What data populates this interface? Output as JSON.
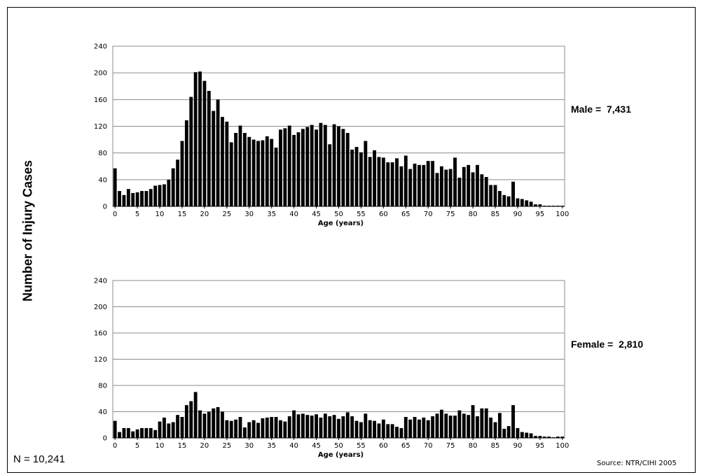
{
  "y_axis_label": "Number of Injury Cases",
  "n_total": "N =  10,241",
  "source": "Source: NTR/CIHI 2005",
  "chart_data": [
    {
      "type": "bar",
      "xlabel": "Age (years)",
      "total_label": "Male =  7,431",
      "ylim": [
        0,
        240
      ],
      "yticks": [
        0,
        40,
        80,
        120,
        160,
        200,
        240
      ],
      "xticks": [
        0,
        5,
        10,
        15,
        20,
        25,
        30,
        35,
        40,
        45,
        50,
        55,
        60,
        65,
        70,
        75,
        80,
        85,
        90,
        95,
        100
      ],
      "xlim": [
        0,
        100
      ],
      "grid": true,
      "categories": [
        0,
        1,
        2,
        3,
        4,
        5,
        6,
        7,
        8,
        9,
        10,
        11,
        12,
        13,
        14,
        15,
        16,
        17,
        18,
        19,
        20,
        21,
        22,
        23,
        24,
        25,
        26,
        27,
        28,
        29,
        30,
        31,
        32,
        33,
        34,
        35,
        36,
        37,
        38,
        39,
        40,
        41,
        42,
        43,
        44,
        45,
        46,
        47,
        48,
        49,
        50,
        51,
        52,
        53,
        54,
        55,
        56,
        57,
        58,
        59,
        60,
        61,
        62,
        63,
        64,
        65,
        66,
        67,
        68,
        69,
        70,
        71,
        72,
        73,
        74,
        75,
        76,
        77,
        78,
        79,
        80,
        81,
        82,
        83,
        84,
        85,
        86,
        87,
        88,
        89,
        90,
        91,
        92,
        93,
        94,
        95,
        96,
        97,
        98,
        99,
        100
      ],
      "values": [
        57,
        23,
        17,
        26,
        20,
        21,
        23,
        23,
        26,
        31,
        32,
        33,
        40,
        57,
        70,
        98,
        129,
        164,
        201,
        202,
        188,
        173,
        143,
        160,
        134,
        127,
        96,
        110,
        121,
        110,
        104,
        100,
        98,
        99,
        105,
        101,
        88,
        115,
        117,
        121,
        107,
        111,
        116,
        119,
        122,
        115,
        125,
        122,
        93,
        123,
        120,
        116,
        110,
        85,
        89,
        81,
        98,
        74,
        84,
        74,
        73,
        66,
        66,
        72,
        60,
        76,
        56,
        64,
        62,
        62,
        68,
        68,
        50,
        60,
        55,
        56,
        73,
        43,
        59,
        62,
        51,
        62,
        48,
        44,
        32,
        32,
        23,
        17,
        15,
        37,
        12,
        11,
        9,
        7,
        3,
        3,
        1,
        1,
        1,
        1,
        1
      ]
    },
    {
      "type": "bar",
      "xlabel": "Age (years)",
      "total_label": "Female =  2,810",
      "ylim": [
        0,
        240
      ],
      "yticks": [
        0,
        40,
        80,
        120,
        160,
        200,
        240
      ],
      "xticks": [
        0,
        5,
        10,
        15,
        20,
        25,
        30,
        35,
        40,
        45,
        50,
        55,
        60,
        65,
        70,
        75,
        80,
        85,
        90,
        95,
        100
      ],
      "xlim": [
        0,
        100
      ],
      "grid": true,
      "categories": [
        0,
        1,
        2,
        3,
        4,
        5,
        6,
        7,
        8,
        9,
        10,
        11,
        12,
        13,
        14,
        15,
        16,
        17,
        18,
        19,
        20,
        21,
        22,
        23,
        24,
        25,
        26,
        27,
        28,
        29,
        30,
        31,
        32,
        33,
        34,
        35,
        36,
        37,
        38,
        39,
        40,
        41,
        42,
        43,
        44,
        45,
        46,
        47,
        48,
        49,
        50,
        51,
        52,
        53,
        54,
        55,
        56,
        57,
        58,
        59,
        60,
        61,
        62,
        63,
        64,
        65,
        66,
        67,
        68,
        69,
        70,
        71,
        72,
        73,
        74,
        75,
        76,
        77,
        78,
        79,
        80,
        81,
        82,
        83,
        84,
        85,
        86,
        87,
        88,
        89,
        90,
        91,
        92,
        93,
        94,
        95,
        96,
        97,
        98,
        99,
        100
      ],
      "values": [
        26,
        9,
        15,
        15,
        10,
        13,
        15,
        15,
        15,
        12,
        25,
        31,
        22,
        24,
        35,
        32,
        50,
        56,
        70,
        42,
        37,
        40,
        45,
        47,
        40,
        27,
        26,
        28,
        32,
        16,
        24,
        27,
        23,
        30,
        31,
        32,
        32,
        27,
        25,
        33,
        42,
        36,
        37,
        35,
        34,
        36,
        31,
        37,
        33,
        35,
        29,
        33,
        39,
        33,
        26,
        24,
        37,
        27,
        26,
        22,
        28,
        21,
        21,
        17,
        15,
        32,
        28,
        32,
        28,
        31,
        27,
        33,
        37,
        43,
        37,
        34,
        34,
        42,
        37,
        35,
        50,
        33,
        45,
        45,
        31,
        24,
        38,
        14,
        18,
        50,
        15,
        9,
        8,
        7,
        3,
        3,
        2,
        2,
        1,
        2,
        2
      ]
    }
  ]
}
